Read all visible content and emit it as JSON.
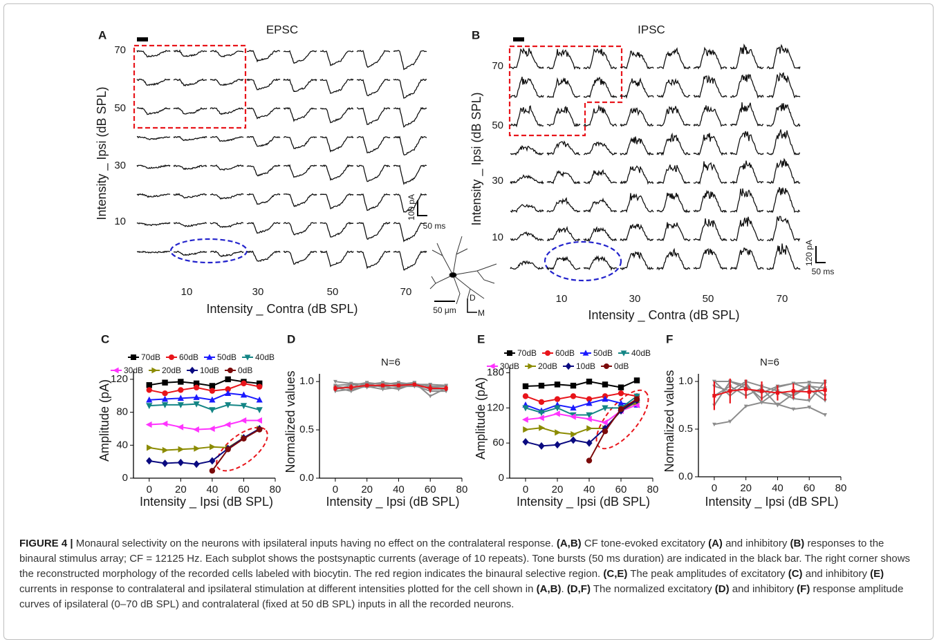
{
  "panel_a": {
    "label": "A",
    "title": "EPSC",
    "yticks": [
      70,
      50,
      30,
      10
    ],
    "xticks": [
      10,
      30,
      50,
      70
    ],
    "ylabel": "Intensity _ Ipsi (dB SPL)",
    "xlabel": "Intensity _ Contra (dB SPL)",
    "scale_y": "100 pA",
    "scale_x": "50 ms"
  },
  "panel_b": {
    "label": "B",
    "title": "IPSC",
    "yticks": [
      70,
      50,
      30,
      10
    ],
    "xticks": [
      10,
      30,
      50,
      70
    ],
    "ylabel": "Intensity _ Ipsi (dB SPL)",
    "xlabel": "Intensity _ Contra (dB SPL)",
    "scale_y": "120 pA",
    "scale_x": "50 ms"
  },
  "morphology": {
    "scale": "50 μm",
    "dorsal": "D",
    "medial": "M"
  },
  "chart_data": [
    {
      "type": "line",
      "panel": "C",
      "xlabel": "Intensity _ Ipsi (dB SPL)",
      "ylabel": "Amplitude (pA)",
      "legend": "top",
      "x": [
        0,
        10,
        20,
        30,
        40,
        50,
        60,
        70
      ],
      "xlim": [
        -10,
        80
      ],
      "xticks": [
        0,
        20,
        40,
        60,
        80
      ],
      "ylim": [
        0,
        130
      ],
      "yticks": [
        0,
        40,
        80,
        120
      ],
      "series": [
        {
          "name": "70dB",
          "color": "#000000",
          "marker": "square",
          "values": [
            113,
            116,
            117,
            115,
            112,
            120,
            117,
            115
          ]
        },
        {
          "name": "60dB",
          "color": "#e8141a",
          "marker": "circle",
          "values": [
            107,
            103,
            107,
            110,
            106,
            108,
            115,
            111
          ]
        },
        {
          "name": "50dB",
          "color": "#1a1aff",
          "marker": "triangle-up",
          "values": [
            95,
            96,
            97,
            98,
            95,
            103,
            101,
            95
          ]
        },
        {
          "name": "40dB",
          "color": "#138585",
          "marker": "triangle-down",
          "values": [
            88,
            89,
            89,
            90,
            83,
            89,
            88,
            83
          ]
        },
        {
          "name": "30dB",
          "color": "#ff33ff",
          "marker": "triangle-left",
          "values": [
            65,
            66,
            62,
            59,
            60,
            65,
            70,
            70
          ]
        },
        {
          "name": "20dB",
          "color": "#8b8b00",
          "marker": "triangle-right",
          "values": [
            37,
            34,
            35,
            36,
            38,
            37,
            49,
            60
          ]
        },
        {
          "name": "10dB",
          "color": "#0a0a80",
          "marker": "diamond",
          "values": [
            21,
            18,
            19,
            17,
            21,
            36,
            49,
            60
          ]
        },
        {
          "name": "0dB",
          "color": "#7b0a0a",
          "marker": "circle",
          "values": [
            null,
            null,
            null,
            null,
            9,
            35,
            48,
            59
          ]
        }
      ]
    },
    {
      "type": "line",
      "panel": "D",
      "title": "N=6",
      "xlabel": "Intensity _ Ipsi (dB SPL)",
      "ylabel": "Normalized values",
      "x": [
        0,
        10,
        20,
        30,
        40,
        50,
        60,
        70
      ],
      "xlim": [
        -10,
        80
      ],
      "xticks": [
        0,
        20,
        40,
        60,
        80
      ],
      "ylim": [
        0,
        1.08
      ],
      "yticks": [
        {
          "value": 0,
          "label": "0.0"
        },
        {
          "value": 0.5,
          "label": "0.5"
        },
        {
          "value": 1,
          "label": "1.0"
        }
      ],
      "series": [
        {
          "color": "#8c8c8c",
          "marker": "triangle-down",
          "values": [
            1.0,
            0.98,
            0.97,
            0.99,
            0.97,
            0.98,
            0.95,
            0.95
          ]
        },
        {
          "color": "#8c8c8c",
          "marker": "triangle-down",
          "values": [
            0.95,
            0.93,
            0.98,
            0.94,
            0.97,
            0.99,
            0.85,
            0.93
          ]
        },
        {
          "color": "#8c8c8c",
          "marker": "triangle-down",
          "values": [
            0.9,
            0.92,
            0.95,
            0.92,
            0.94,
            0.96,
            0.9,
            0.9
          ]
        },
        {
          "color": "#8c8c8c",
          "marker": "triangle-down",
          "values": [
            0.92,
            0.96,
            0.99,
            0.97,
            0.99,
            0.97,
            0.97,
            0.96
          ]
        },
        {
          "color": "#8c8c8c",
          "marker": "triangle-down",
          "values": [
            0.94,
            0.9,
            0.96,
            0.95,
            0.92,
            0.98,
            0.92,
            0.92
          ]
        },
        {
          "color": "#8c8c8c",
          "marker": "triangle-down",
          "values": [
            0.96,
            0.97,
            0.94,
            0.96,
            0.95,
            0.95,
            0.94,
            0.95
          ]
        },
        {
          "color": "#e8141a",
          "marker": "square",
          "values": [
            0.93,
            0.94,
            0.96,
            0.96,
            0.96,
            0.97,
            0.93,
            0.93
          ],
          "errors": [
            0.03,
            0.03,
            0.02,
            0.02,
            0.02,
            0.02,
            0.04,
            0.03
          ]
        }
      ]
    },
    {
      "type": "line",
      "panel": "E",
      "xlabel": "Intensity _ Ipsi (dB SPL)",
      "ylabel": "Amplitude (pA)",
      "legend": "top",
      "x": [
        0,
        10,
        20,
        30,
        40,
        50,
        60,
        70
      ],
      "xlim": [
        -10,
        80
      ],
      "xticks": [
        0,
        20,
        40,
        60,
        80
      ],
      "ylim": [
        0,
        190
      ],
      "yticks": [
        0,
        60,
        120,
        180
      ],
      "series": [
        {
          "name": "70dB",
          "color": "#000000",
          "marker": "square",
          "values": [
            157,
            158,
            160,
            158,
            165,
            160,
            155,
            167
          ]
        },
        {
          "name": "60dB",
          "color": "#e8141a",
          "marker": "circle",
          "values": [
            140,
            130,
            135,
            140,
            135,
            140,
            145,
            140
          ]
        },
        {
          "name": "50dB",
          "color": "#1a1aff",
          "marker": "triangle-up",
          "values": [
            125,
            115,
            125,
            120,
            128,
            135,
            128,
            125
          ]
        },
        {
          "name": "40dB",
          "color": "#138585",
          "marker": "triangle-down",
          "values": [
            120,
            112,
            120,
            108,
            108,
            120,
            120,
            140
          ]
        },
        {
          "name": "30dB",
          "color": "#ff33ff",
          "marker": "triangle-left",
          "values": [
            100,
            103,
            110,
            105,
            101,
            95,
            115,
            125
          ]
        },
        {
          "name": "20dB",
          "color": "#8b8b00",
          "marker": "triangle-right",
          "values": [
            83,
            86,
            78,
            75,
            85,
            85,
            115,
            130
          ]
        },
        {
          "name": "10dB",
          "color": "#0a0a80",
          "marker": "diamond",
          "values": [
            62,
            55,
            57,
            65,
            60,
            85,
            115,
            133
          ]
        },
        {
          "name": "0dB",
          "color": "#7b0a0a",
          "marker": "circle",
          "values": [
            null,
            null,
            null,
            null,
            30,
            80,
            118,
            135
          ]
        }
      ]
    },
    {
      "type": "line",
      "panel": "F",
      "title": "N=6",
      "xlabel": "Intensity _ Ipsi (dB SPL)",
      "ylabel": "Normalized values",
      "x": [
        0,
        10,
        20,
        30,
        40,
        50,
        60,
        70
      ],
      "xlim": [
        -10,
        80
      ],
      "xticks": [
        0,
        20,
        40,
        60,
        80
      ],
      "ylim": [
        0,
        1.08
      ],
      "yticks": [
        {
          "value": 0,
          "label": "0.0"
        },
        {
          "value": 0.5,
          "label": "0.5"
        },
        {
          "value": 1,
          "label": "1.0"
        }
      ],
      "series": [
        {
          "color": "#8c8c8c",
          "marker": "triangle-down",
          "values": [
            0.55,
            0.58,
            0.74,
            0.78,
            0.76,
            0.71,
            0.73,
            0.65
          ]
        },
        {
          "color": "#8c8c8c",
          "marker": "triangle-down",
          "values": [
            1.0,
            1.0,
            0.96,
            0.82,
            0.94,
            0.98,
            0.99,
            0.98
          ]
        },
        {
          "color": "#8c8c8c",
          "marker": "triangle-down",
          "values": [
            0.95,
            0.9,
            1.0,
            0.95,
            0.9,
            0.85,
            0.95,
            0.93
          ]
        },
        {
          "color": "#8c8c8c",
          "marker": "triangle-down",
          "values": [
            0.85,
            0.95,
            0.85,
            0.93,
            0.75,
            0.87,
            0.96,
            0.85
          ]
        },
        {
          "color": "#8c8c8c",
          "marker": "triangle-down",
          "values": [
            0.75,
            1.0,
            0.93,
            0.88,
            0.95,
            0.98,
            0.92,
            0.8
          ]
        },
        {
          "color": "#8c8c8c",
          "marker": "triangle-down",
          "values": [
            1.0,
            0.85,
            0.98,
            0.78,
            0.9,
            0.82,
            0.8,
            1.0
          ]
        },
        {
          "color": "#e8141a",
          "marker": "square",
          "values": [
            0.85,
            0.9,
            0.92,
            0.9,
            0.88,
            0.9,
            0.89,
            0.91
          ],
          "errors": [
            0.15,
            0.13,
            0.1,
            0.1,
            0.08,
            0.08,
            0.07,
            0.11
          ]
        }
      ]
    }
  ],
  "caption": {
    "runs": [
      {
        "text": "FIGURE 4 |",
        "bold": true
      },
      {
        "text": " Monaural selectivity on the neurons with ipsilateral inputs having no effect on the contralateral response. ",
        "bold": false
      },
      {
        "text": "(A,B)",
        "bold": true
      },
      {
        "text": " CF tone-evoked excitatory ",
        "bold": false
      },
      {
        "text": "(A)",
        "bold": true
      },
      {
        "text": " and inhibitory ",
        "bold": false
      },
      {
        "text": "(B)",
        "bold": true
      },
      {
        "text": " responses to the binaural stimulus array; CF = 12125 Hz. Each subplot shows the postsynaptic currents (average of 10 repeats). Tone bursts (50 ms duration) are indicated in the black bar. The right corner shows the reconstructed morphology of the recorded cells labeled with biocytin. The red region indicates the binaural selective region. ",
        "bold": false
      },
      {
        "text": "(C,E)",
        "bold": true
      },
      {
        "text": " The peak amplitudes of excitatory ",
        "bold": false
      },
      {
        "text": "(C)",
        "bold": true
      },
      {
        "text": " and inhibitory ",
        "bold": false
      },
      {
        "text": "(E)",
        "bold": true
      },
      {
        "text": " currents in response to contralateral and ipsilateral stimulation at different intensities plotted for the cell shown in ",
        "bold": false
      },
      {
        "text": "(A,B)",
        "bold": true
      },
      {
        "text": ". ",
        "bold": false
      },
      {
        "text": "(D,F)",
        "bold": true
      },
      {
        "text": " The normalized excitatory ",
        "bold": false
      },
      {
        "text": "(D)",
        "bold": true
      },
      {
        "text": " and inhibitory ",
        "bold": false
      },
      {
        "text": "(F)",
        "bold": true
      },
      {
        "text": " response amplitude curves of ipsilateral (0–70 dB SPL) and contralateral (fixed at 50 dB SPL) inputs in all the recorded neurons.",
        "bold": false
      }
    ]
  }
}
